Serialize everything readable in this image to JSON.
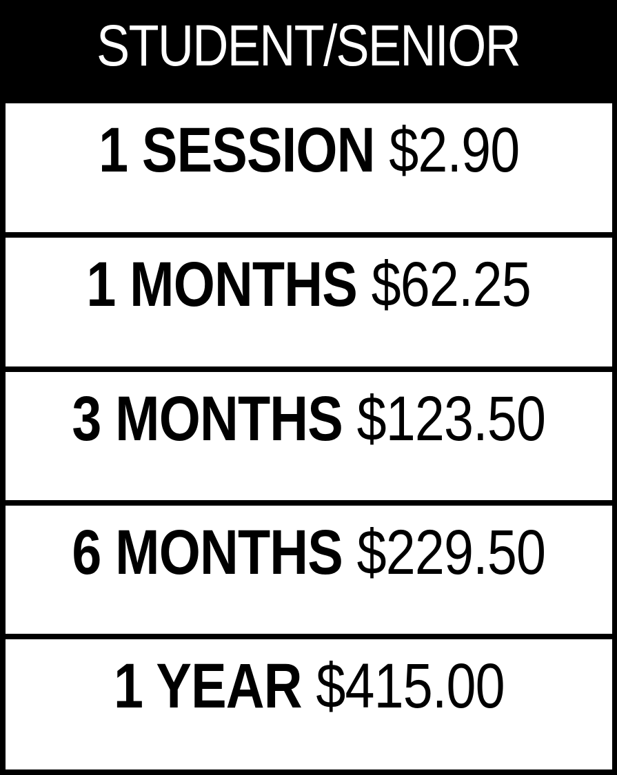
{
  "header": {
    "title": "STUDENT/SENIOR"
  },
  "rows": [
    {
      "label": "1 SESSION",
      "price": "$2.90"
    },
    {
      "label": "1 MONTHS",
      "price": "$62.25"
    },
    {
      "label": "3 MONTHS",
      "price": "$123.50"
    },
    {
      "label": "6 MONTHS",
      "price": "$229.50"
    },
    {
      "label": "1 YEAR",
      "price": "$415.00"
    }
  ],
  "colors": {
    "background": "#000000",
    "row_background": "#ffffff",
    "text_dark": "#000000",
    "text_light": "#ffffff"
  }
}
